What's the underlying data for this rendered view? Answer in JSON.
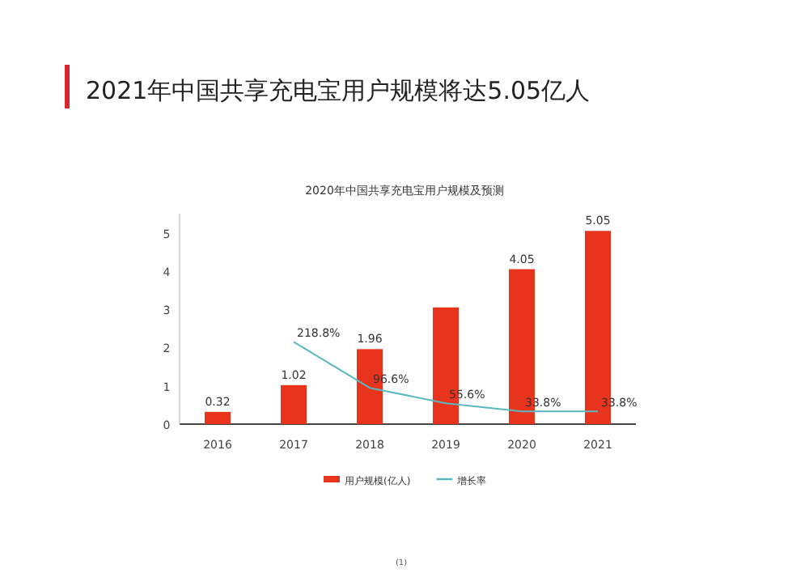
{
  "chart_data": {
    "type": "bar",
    "title": "2021年中国共享充电宝用户规模将达5.05亿人",
    "subtitle": "2020年中国共享充电宝用户规模及预测",
    "categories": [
      "2016",
      "2017",
      "2018",
      "2019",
      "2020",
      "2021"
    ],
    "series": [
      {
        "name": "用户规模(亿人)",
        "color": "#e8341c",
        "values": [
          0.32,
          1.02,
          1.96,
          3.05,
          4.05,
          5.05
        ],
        "value_labels": [
          "0.32",
          "1.02",
          "1.96",
          null,
          "4.05",
          "5.05"
        ]
      },
      {
        "name": "增长率",
        "type": "line",
        "axis": "y2",
        "color": "#5bb8c0",
        "values": [
          null,
          218.8,
          96.6,
          55.6,
          33.8,
          33.8
        ],
        "value_labels": [
          null,
          "218.8%",
          "96.6%",
          "55.6%",
          "33.8%",
          "33.8%"
        ]
      }
    ],
    "ylim": [
      0,
      5.5
    ],
    "yticks": [
      0,
      1,
      2,
      3,
      4,
      5
    ],
    "tick_labels": "y",
    "legend": "bottom",
    "grid": false,
    "marker": "none",
    "line_style": "solid",
    "annotations": [
      "(1)"
    ]
  }
}
